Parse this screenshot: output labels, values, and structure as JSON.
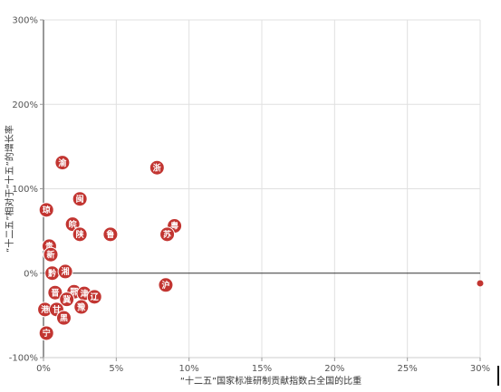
{
  "chart_data": {
    "type": "scatter",
    "xlabel": "“十二五”国家标准研制贡献指数占全国的比重",
    "ylabel": "“十二五”相对于“十五”的增长率",
    "xlim": [
      0,
      30
    ],
    "ylim": [
      -100,
      300
    ],
    "x_ticks": [
      {
        "value": 0,
        "label": "0%"
      },
      {
        "value": 5,
        "label": "5%"
      },
      {
        "value": 10,
        "label": "10%"
      },
      {
        "value": 15,
        "label": "15%"
      },
      {
        "value": 20,
        "label": "20%"
      },
      {
        "value": 25,
        "label": "25%"
      },
      {
        "value": 30,
        "label": "30%"
      }
    ],
    "y_ticks": [
      {
        "value": -100,
        "label": "-100%"
      },
      {
        "value": 0,
        "label": "0%"
      },
      {
        "value": 100,
        "label": "100%"
      },
      {
        "value": 200,
        "label": "200%"
      },
      {
        "value": 300,
        "label": "300%"
      }
    ],
    "grid": true,
    "marker_color": "#c23531",
    "points": [
      {
        "label": "渝",
        "x": 1.3,
        "y": 131
      },
      {
        "label": "浙",
        "x": 7.8,
        "y": 125
      },
      {
        "label": "闽",
        "x": 2.5,
        "y": 88
      },
      {
        "label": "琼",
        "x": 0.2,
        "y": 75
      },
      {
        "label": "皖",
        "x": 2.0,
        "y": 58
      },
      {
        "label": "粤",
        "x": 9.0,
        "y": 56
      },
      {
        "label": "陕",
        "x": 2.5,
        "y": 46
      },
      {
        "label": "鲁",
        "x": 4.6,
        "y": 46
      },
      {
        "label": "苏",
        "x": 8.5,
        "y": 46
      },
      {
        "label": "贵",
        "x": 0.4,
        "y": 32
      },
      {
        "label": "新",
        "x": 0.5,
        "y": 22
      },
      {
        "label": "黔",
        "x": 0.6,
        "y": 0
      },
      {
        "label": "湘",
        "x": 1.5,
        "y": 2
      },
      {
        "label": "沪",
        "x": 8.4,
        "y": -14
      },
      {
        "label": "晋",
        "x": 0.8,
        "y": -23
      },
      {
        "label": "鄂",
        "x": 2.1,
        "y": -22
      },
      {
        "label": "津",
        "x": 2.8,
        "y": -24
      },
      {
        "label": "辽",
        "x": 3.5,
        "y": -28
      },
      {
        "label": "冀",
        "x": 1.6,
        "y": -31
      },
      {
        "label": "豫",
        "x": 2.6,
        "y": -40
      },
      {
        "label": "港",
        "x": 0.1,
        "y": -43
      },
      {
        "label": "甘",
        "x": 0.9,
        "y": -43
      },
      {
        "label": "黑",
        "x": 1.4,
        "y": -53
      },
      {
        "label": "宁",
        "x": 0.2,
        "y": -71
      },
      {
        "label": "",
        "x": 30,
        "y": -12
      }
    ]
  }
}
